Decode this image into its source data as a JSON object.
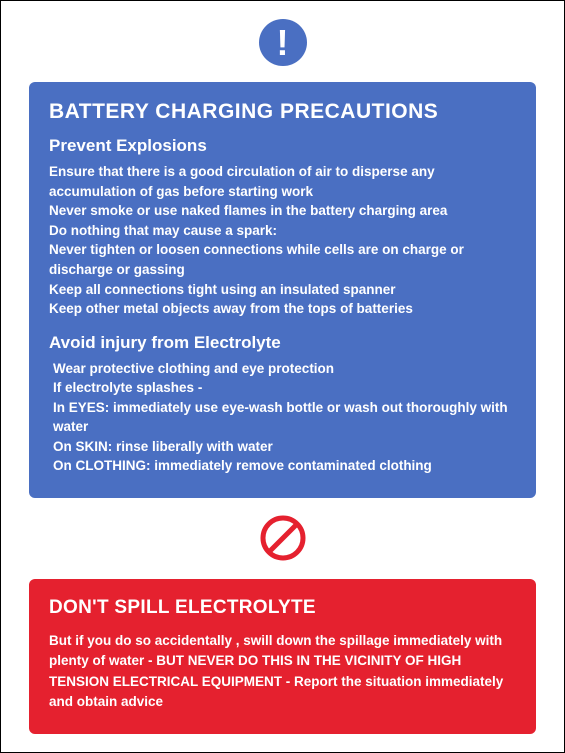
{
  "colors": {
    "blue": "#4a6fc2",
    "red": "#e5212f",
    "white": "#ffffff",
    "prohibition_red": "#e5212f"
  },
  "mandatory_icon": {
    "glyph": "!",
    "bg_color": "#4a6fc2",
    "fg_color": "#ffffff"
  },
  "blue_panel": {
    "bg_color": "#4a6fc2",
    "title": "BATTERY CHARGING PRECAUTIONS",
    "section1": {
      "heading": "Prevent Explosions",
      "text": "Ensure that there is a good circulation of air to disperse any accumulation of gas before starting work\nNever smoke or use naked flames in the battery charging area\nDo nothing that may cause a spark:\nNever tighten or loosen connections while cells are on charge or discharge or gassing\nKeep all connections tight using an insulated spanner\nKeep other metal objects away from the tops of batteries"
    },
    "section2": {
      "heading": "Avoid injury from Electrolyte",
      "text": "Wear protective clothing and eye protection\nIf electrolyte splashes -\nIn EYES: immediately use eye-wash bottle or wash out thoroughly with water\nOn SKIN: rinse liberally with water\nOn CLOTHING: immediately remove contaminated clothing"
    }
  },
  "prohibition_icon": {
    "stroke_color": "#e5212f",
    "size": 48
  },
  "red_panel": {
    "bg_color": "#e5212f",
    "title": "DON'T SPILL ELECTROLYTE",
    "text": "But if you do so accidentally , swill down the spillage immediately with plenty of water - BUT NEVER DO THIS IN THE VICINITY OF HIGH TENSION ELECTRICAL EQUIPMENT - Report the situation immediately and obtain advice"
  }
}
